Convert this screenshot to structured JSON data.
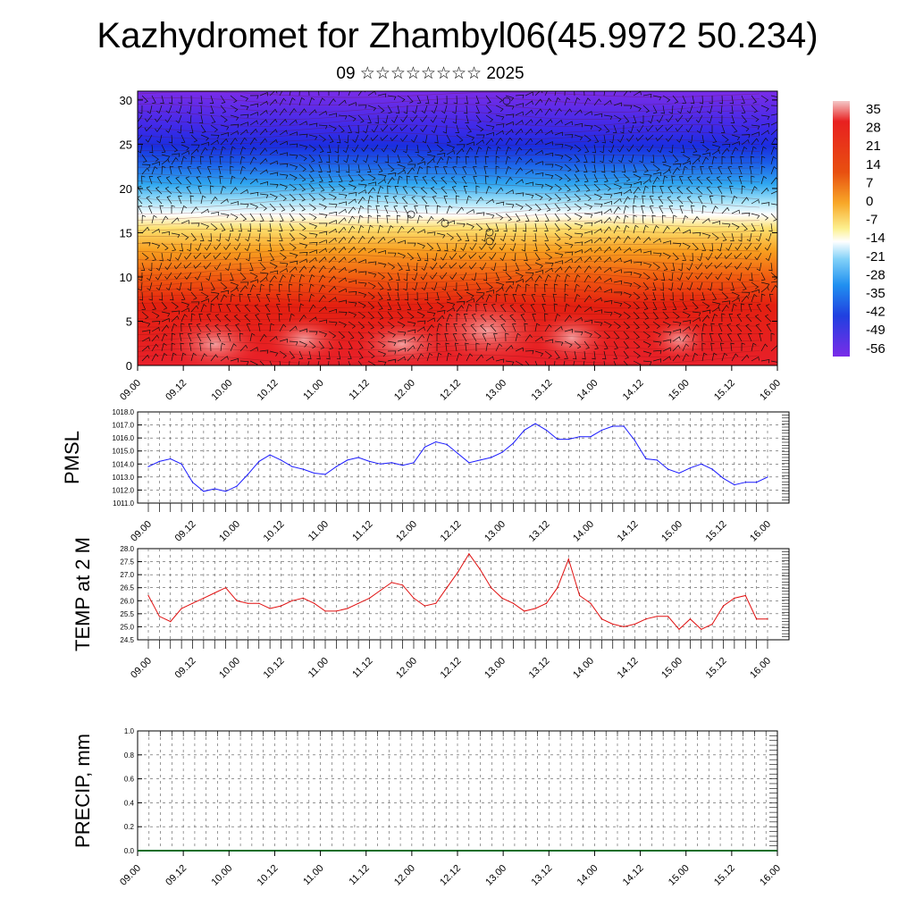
{
  "title": "Kazhydromet for Zhambyl06(45.9972 50.234)",
  "subtitle": "09 ☆☆☆☆☆☆☆☆ 2025",
  "colors": {
    "pmsl_line": "#1a1aff",
    "temp_line": "#e01010",
    "precip_line": "#0a6e2a",
    "frame": "#000000"
  },
  "chart_data": [
    {
      "type": "heatmap",
      "name": "vertical-temperature-wind-section",
      "x_ticks": [
        "09.00",
        "09.12",
        "10.00",
        "10.12",
        "11.00",
        "11.12",
        "12.00",
        "12.12",
        "13.00",
        "13.12",
        "14.00",
        "14.12",
        "15.00",
        "15.12",
        "16.00"
      ],
      "ylim": [
        0,
        31
      ],
      "y_ticks": [
        0,
        5,
        10,
        15,
        20,
        25,
        30
      ],
      "legend_labels": [
        "35",
        "28",
        "21",
        "14",
        "7",
        "0",
        "-7",
        "-14",
        "-21",
        "-28",
        "-35",
        "-42",
        "-49",
        "-56"
      ],
      "legend_placement": "right",
      "overlay": "wind barbs"
    },
    {
      "type": "line",
      "ylabel": "PMSL",
      "ylim": [
        1011.0,
        1018.0
      ],
      "y_ticks": [
        "1011.0",
        "1012.0",
        "1013.0",
        "1014.0",
        "1015.0",
        "1016.0",
        "1017.0",
        "1018.0"
      ],
      "x_ticks": [
        "09.00",
        "09.12",
        "10.00",
        "10.12",
        "11.00",
        "11.12",
        "12.00",
        "12.12",
        "13.00",
        "13.12",
        "14.00",
        "14.12",
        "15.00",
        "15.12",
        "16.00"
      ],
      "grid": true,
      "x": [
        0,
        3,
        6,
        9,
        12,
        15,
        18,
        21,
        24,
        27,
        30,
        33,
        36,
        39,
        42,
        45,
        48,
        51,
        54,
        57,
        60,
        63,
        66,
        69,
        72,
        75,
        78,
        81,
        84,
        87,
        90,
        93,
        96,
        99,
        102,
        105,
        108,
        111,
        114,
        117,
        120,
        123,
        126,
        129,
        132,
        135,
        138,
        141,
        144,
        147,
        150,
        153,
        156,
        159,
        162,
        165,
        168
      ],
      "values": [
        1013.8,
        1014.2,
        1014.4,
        1014.0,
        1012.6,
        1011.9,
        1012.1,
        1011.9,
        1012.3,
        1013.2,
        1014.2,
        1014.7,
        1014.3,
        1013.8,
        1013.6,
        1013.3,
        1013.2,
        1013.8,
        1014.3,
        1014.5,
        1014.2,
        1014.0,
        1014.1,
        1013.9,
        1014.1,
        1015.3,
        1015.7,
        1015.5,
        1014.8,
        1014.1,
        1014.3,
        1014.5,
        1014.9,
        1015.6,
        1016.6,
        1017.1,
        1016.6,
        1015.9,
        1015.9,
        1016.1,
        1016.1,
        1016.6,
        1016.9,
        1016.9,
        1015.8,
        1014.4,
        1014.3,
        1013.6,
        1013.3,
        1013.7,
        1014.0,
        1013.6,
        1012.9,
        1012.4,
        1012.6,
        1012.6,
        1013.0
      ]
    },
    {
      "type": "line",
      "ylabel": "TEMP at 2 M",
      "ylim": [
        24.5,
        28.0
      ],
      "y_ticks": [
        "24.5",
        "25.0",
        "25.5",
        "26.0",
        "26.5",
        "27.0",
        "27.5",
        "28.0"
      ],
      "x_ticks": [
        "09.00",
        "09.12",
        "10.00",
        "10.12",
        "11.00",
        "11.12",
        "12.00",
        "12.12",
        "13.00",
        "13.12",
        "14.00",
        "14.12",
        "15.00",
        "15.12",
        "16.00"
      ],
      "grid": true,
      "x": [
        0,
        3,
        6,
        9,
        12,
        15,
        18,
        21,
        24,
        27,
        30,
        33,
        36,
        39,
        42,
        45,
        48,
        51,
        54,
        57,
        60,
        63,
        66,
        69,
        72,
        75,
        78,
        81,
        84,
        87,
        90,
        93,
        96,
        99,
        102,
        105,
        108,
        111,
        114,
        117,
        120,
        123,
        126,
        129,
        132,
        135,
        138,
        141,
        144,
        147,
        150,
        153,
        156,
        159,
        162,
        165,
        168
      ],
      "values": [
        26.2,
        25.4,
        25.2,
        25.7,
        25.9,
        26.1,
        26.3,
        26.5,
        26.0,
        25.9,
        25.9,
        25.7,
        25.8,
        26.0,
        26.1,
        25.9,
        25.6,
        25.6,
        25.7,
        25.9,
        26.1,
        26.4,
        26.7,
        26.6,
        26.1,
        25.8,
        25.9,
        26.5,
        27.1,
        27.8,
        27.2,
        26.5,
        26.1,
        25.9,
        25.6,
        25.7,
        25.9,
        26.5,
        27.6,
        26.2,
        25.9,
        25.3,
        25.1,
        25.0,
        25.1,
        25.3,
        25.4,
        25.4,
        24.9,
        25.3,
        24.9,
        25.1,
        25.8,
        26.1,
        26.2,
        25.3,
        25.3
      ]
    },
    {
      "type": "line",
      "ylabel": "PRECIP, mm",
      "ylim": [
        0.0,
        1.0
      ],
      "y_ticks": [
        "0.0",
        "0.2",
        "0.4",
        "0.6",
        "0.8",
        "1.0"
      ],
      "x_ticks": [
        "09.00",
        "09.12",
        "10.00",
        "10.12",
        "11.00",
        "11.12",
        "12.00",
        "12.12",
        "13.00",
        "13.12",
        "14.00",
        "14.12",
        "15.00",
        "15.12",
        "16.00"
      ],
      "grid": true,
      "values_all": 0.0
    }
  ]
}
